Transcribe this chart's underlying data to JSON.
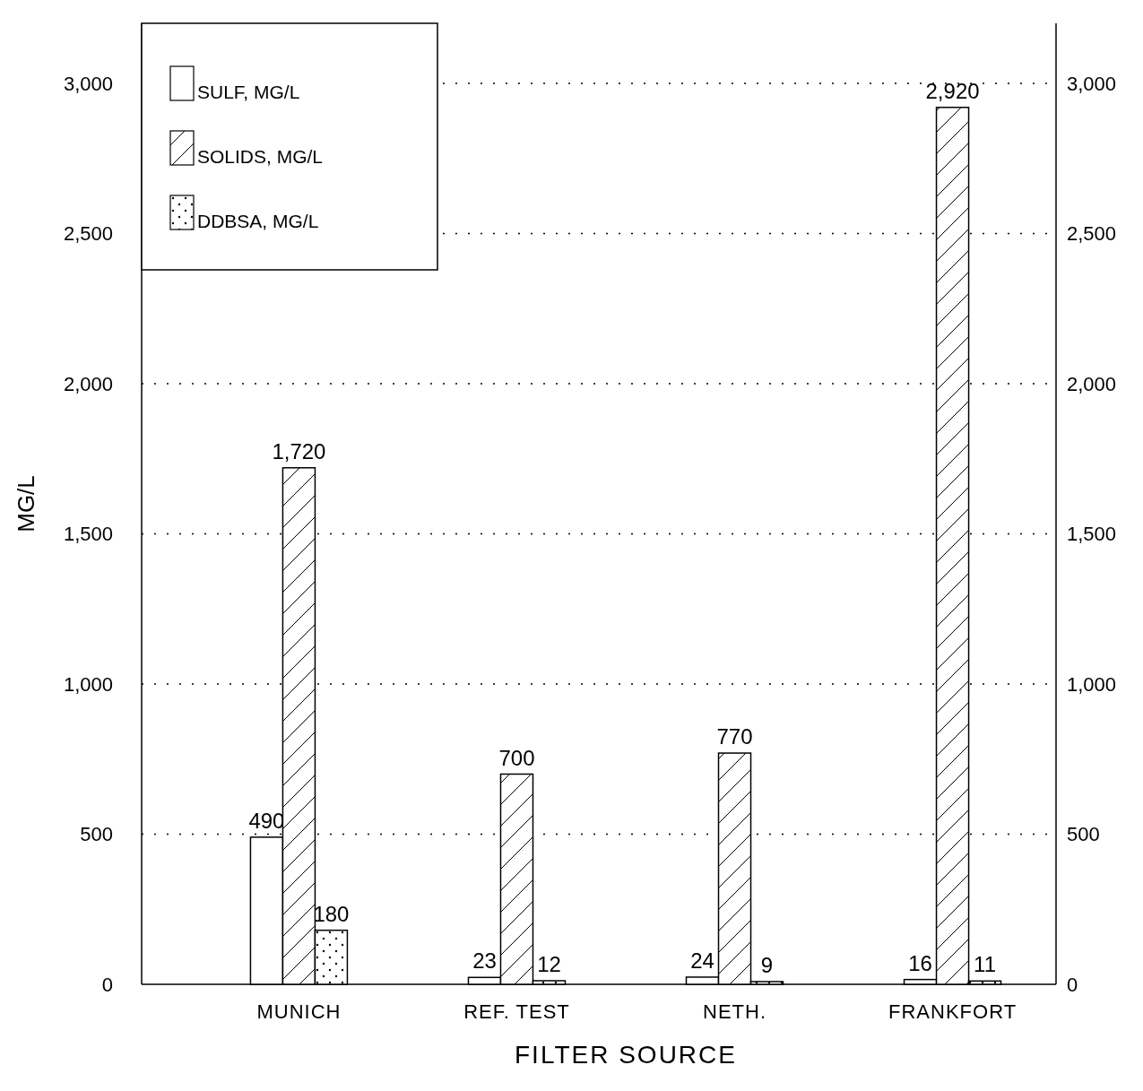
{
  "chart_data": {
    "type": "bar",
    "xlabel": "FILTER SOURCE",
    "ylabel": "MG/L",
    "categories": [
      "MUNICH",
      "REF. TEST",
      "NETH.",
      "FRANKFORT"
    ],
    "series": [
      {
        "name": "SULF, MG/L",
        "color": "#ffffff",
        "values": [
          490,
          23,
          24,
          16
        ],
        "value_labels": [
          "490",
          "23",
          "24",
          "16"
        ]
      },
      {
        "name": "SOLIDS, MG/L",
        "color": "#ffffff",
        "values": [
          1720,
          700,
          770,
          2920
        ],
        "value_labels": [
          "1,720",
          "700",
          "770",
          "2,920"
        ]
      },
      {
        "name": "DDBSA, MG/L",
        "color": "#ffffff",
        "values": [
          180,
          12,
          9,
          11
        ],
        "value_labels": [
          "180",
          "12",
          "9",
          "11"
        ]
      }
    ],
    "ylim": [
      0,
      3200
    ],
    "yticks": [
      0,
      500,
      {
        "value": 1000,
        "label": "1,000"
      },
      {
        "value": 1500,
        "label": "1,500"
      },
      {
        "value": 2000,
        "label": "2,000"
      },
      {
        "value": 2500,
        "label": "2,500"
      },
      {
        "value": 3000,
        "label": "3,000"
      }
    ],
    "y2lim": [
      0,
      3200
    ],
    "y2ticks": [
      0,
      500,
      {
        "value": 1000,
        "label": "1,000"
      },
      {
        "value": 1500,
        "label": "1,500"
      },
      {
        "value": 2000,
        "label": "2,000"
      },
      {
        "value": 2500,
        "label": "2,500"
      },
      {
        "value": 3000,
        "label": "3,000"
      }
    ],
    "grid": "y",
    "legend": "top left"
  }
}
